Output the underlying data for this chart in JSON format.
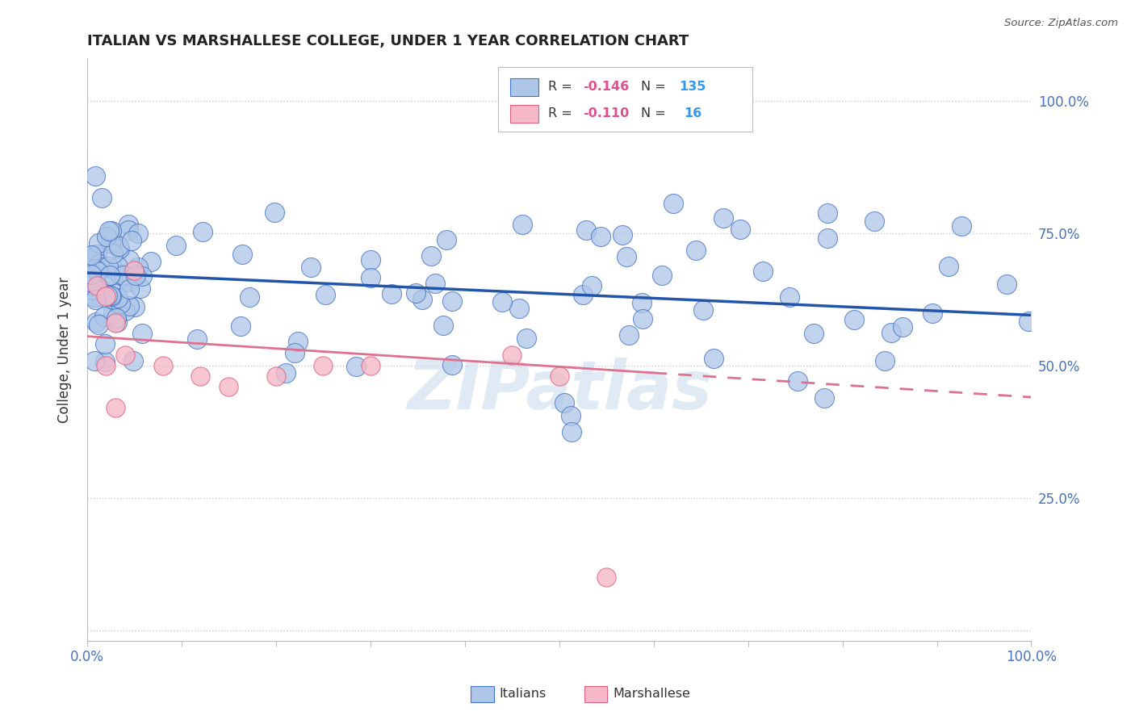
{
  "title": "ITALIAN VS MARSHALLESE COLLEGE, UNDER 1 YEAR CORRELATION CHART",
  "source_text": "Source: ZipAtlas.com",
  "ylabel": "College, Under 1 year",
  "xlim": [
    0.0,
    1.0
  ],
  "ylim": [
    -0.02,
    1.08
  ],
  "italian_R": -0.146,
  "italian_N": 135,
  "marshallese_R": -0.11,
  "marshallese_N": 16,
  "italian_fill": "#aec6e8",
  "italian_edge": "#4472c4",
  "marshallese_fill": "#f4b8c8",
  "marshallese_edge": "#e06080",
  "italian_line_color": "#2255aa",
  "marshallese_line_color": "#e07090",
  "watermark": "ZIPatlas",
  "background_color": "#ffffff",
  "legend_R_color": "#e05090",
  "legend_N_color": "#3399ee",
  "italian_trend_y_start": 0.675,
  "italian_trend_y_end": 0.595,
  "marshallese_trend_y_start": 0.555,
  "marshallese_trend_y_end": 0.44
}
